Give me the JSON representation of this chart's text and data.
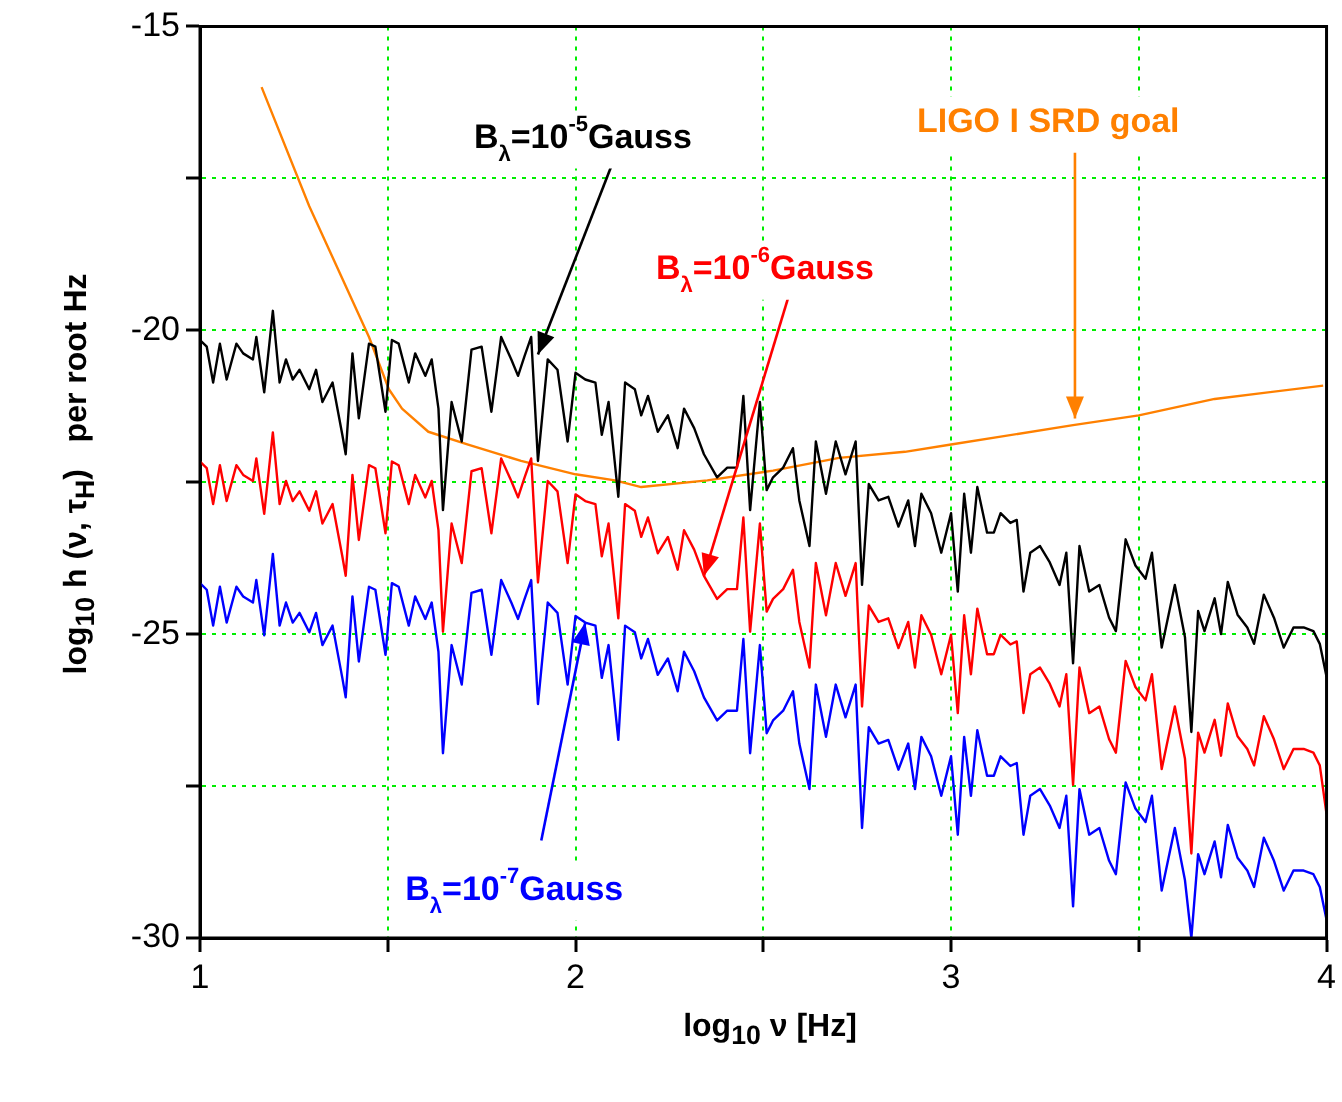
{
  "chart_data": {
    "type": "line",
    "xlabel": "log$_{10}$ ν [Hz]",
    "ylabel": "log$_{10}$ h (ν, τ$_{H}$)   per root Hz",
    "xlim": [
      1,
      4
    ],
    "xticks": [
      1,
      {
        "value": 1.5,
        "label": null
      },
      2,
      {
        "value": 2.5,
        "label": null
      },
      3,
      {
        "value": 3.5,
        "label": null
      },
      4
    ],
    "ylim": [
      -30,
      -15
    ],
    "yticks": [
      -30,
      {
        "value": -27.5,
        "label": null
      },
      -25,
      {
        "value": -22.5,
        "label": null
      },
      -20,
      {
        "value": -17.5,
        "label": null
      },
      -15
    ],
    "grid": true,
    "legend": false,
    "marker": "none",
    "line_style": "solid",
    "x": [
      1.0,
      1.018,
      1.035,
      1.053,
      1.071,
      1.097,
      1.115,
      1.141,
      1.15,
      1.171,
      1.194,
      1.212,
      1.229,
      1.247,
      1.265,
      1.291,
      1.309,
      1.326,
      1.353,
      1.379,
      1.388,
      1.406,
      1.423,
      1.45,
      1.467,
      1.494,
      1.511,
      1.529,
      1.556,
      1.573,
      1.6,
      1.617,
      1.635,
      1.647,
      1.67,
      1.697,
      1.723,
      1.75,
      1.776,
      1.802,
      1.829,
      1.847,
      1.864,
      1.882,
      1.9,
      1.926,
      1.952,
      1.979,
      2.0,
      2.026,
      2.053,
      2.07,
      2.088,
      2.114,
      2.132,
      2.158,
      2.175,
      2.193,
      2.219,
      2.246,
      2.272,
      2.289,
      2.316,
      2.342,
      2.377,
      2.404,
      2.43,
      2.447,
      2.465,
      2.491,
      2.509,
      2.526,
      2.553,
      2.579,
      2.596,
      2.623,
      2.64,
      2.667,
      2.693,
      2.719,
      2.746,
      2.763,
      2.781,
      2.807,
      2.833,
      2.86,
      2.886,
      2.904,
      2.921,
      2.947,
      2.974,
      3.0,
      3.018,
      3.035,
      3.053,
      3.07,
      3.096,
      3.114,
      3.132,
      3.158,
      3.175,
      3.193,
      3.211,
      3.237,
      3.263,
      3.289,
      3.307,
      3.325,
      3.342,
      3.368,
      3.395,
      3.421,
      3.439,
      3.465,
      3.491,
      3.518,
      3.535,
      3.561,
      3.596,
      3.623,
      3.64,
      3.658,
      3.675,
      3.702,
      3.719,
      3.737,
      3.763,
      3.789,
      3.807,
      3.833,
      3.86,
      3.886,
      3.912,
      3.939,
      3.965,
      3.982,
      4.0
    ],
    "series": [
      {
        "color": "#000000",
        "values": [
          -20.16,
          -20.27,
          -20.86,
          -20.22,
          -20.81,
          -20.22,
          -20.38,
          -20.48,
          -20.11,
          -21.02,
          -19.68,
          -20.86,
          -20.48,
          -20.81,
          -20.65,
          -20.97,
          -20.65,
          -21.18,
          -20.86,
          -21.72,
          -22.04,
          -20.38,
          -21.45,
          -20.22,
          -20.27,
          -21.34,
          -20.16,
          -20.22,
          -20.86,
          -20.38,
          -20.75,
          -20.48,
          -21.29,
          -22.96,
          -21.18,
          -21.83,
          -20.32,
          -20.27,
          -21.34,
          -20.11,
          -20.48,
          -20.75,
          -20.43,
          -20.11,
          -22.15,
          -20.48,
          -20.65,
          -21.83,
          -20.7,
          -20.81,
          -20.86,
          -21.72,
          -21.18,
          -22.74,
          -20.86,
          -20.97,
          -21.4,
          -21.08,
          -21.67,
          -21.4,
          -21.94,
          -21.29,
          -21.61,
          -22.04,
          -22.42,
          -22.26,
          -22.26,
          -21.08,
          -22.96,
          -21.18,
          -22.63,
          -22.42,
          -22.26,
          -21.94,
          -22.8,
          -23.55,
          -21.83,
          -22.69,
          -21.83,
          -22.37,
          -21.83,
          -24.19,
          -22.53,
          -22.8,
          -22.74,
          -23.23,
          -22.8,
          -23.55,
          -22.69,
          -23.01,
          -23.66,
          -23.01,
          -24.3,
          -22.69,
          -23.66,
          -22.58,
          -23.33,
          -23.33,
          -23.01,
          -23.17,
          -23.12,
          -24.3,
          -23.66,
          -23.55,
          -23.82,
          -24.19,
          -23.66,
          -25.48,
          -23.55,
          -24.3,
          -24.19,
          -24.73,
          -24.95,
          -23.44,
          -23.87,
          -24.09,
          -23.66,
          -25.22,
          -24.19,
          -25.05,
          -26.61,
          -24.62,
          -24.95,
          -24.41,
          -25.0,
          -24.14,
          -24.68,
          -24.89,
          -25.16,
          -24.35,
          -24.73,
          -25.22,
          -24.89,
          -24.89,
          -24.95,
          -25.16,
          -25.7
        ]
      },
      {
        "color": "#ff0000",
        "values": [
          -22.16,
          -22.27,
          -22.86,
          -22.22,
          -22.81,
          -22.22,
          -22.38,
          -22.48,
          -22.11,
          -23.02,
          -21.68,
          -22.86,
          -22.48,
          -22.81,
          -22.65,
          -22.97,
          -22.65,
          -23.18,
          -22.86,
          -23.72,
          -24.04,
          -22.38,
          -23.45,
          -22.22,
          -22.27,
          -23.34,
          -22.16,
          -22.22,
          -22.86,
          -22.38,
          -22.75,
          -22.48,
          -23.29,
          -24.96,
          -23.18,
          -23.83,
          -22.32,
          -22.27,
          -23.34,
          -22.11,
          -22.48,
          -22.75,
          -22.43,
          -22.11,
          -24.15,
          -22.48,
          -22.65,
          -23.83,
          -22.7,
          -22.81,
          -22.86,
          -23.72,
          -23.18,
          -24.74,
          -22.86,
          -22.97,
          -23.4,
          -23.08,
          -23.67,
          -23.4,
          -23.94,
          -23.29,
          -23.61,
          -24.04,
          -24.42,
          -24.26,
          -24.26,
          -23.08,
          -24.96,
          -23.18,
          -24.63,
          -24.42,
          -24.26,
          -23.94,
          -24.8,
          -25.55,
          -23.83,
          -24.69,
          -23.83,
          -24.37,
          -23.83,
          -26.19,
          -24.53,
          -24.8,
          -24.74,
          -25.23,
          -24.8,
          -25.55,
          -24.69,
          -25.01,
          -25.66,
          -25.01,
          -26.3,
          -24.69,
          -25.66,
          -24.58,
          -25.33,
          -25.33,
          -25.01,
          -25.17,
          -25.12,
          -26.3,
          -25.66,
          -25.55,
          -25.82,
          -26.19,
          -25.66,
          -27.48,
          -25.55,
          -26.3,
          -26.19,
          -26.73,
          -26.95,
          -25.44,
          -25.87,
          -26.09,
          -25.66,
          -27.22,
          -26.19,
          -27.05,
          -28.61,
          -26.62,
          -26.95,
          -26.41,
          -27.0,
          -26.14,
          -26.68,
          -26.89,
          -27.16,
          -26.35,
          -26.73,
          -27.22,
          -26.89,
          -26.89,
          -26.95,
          -27.16,
          -27.96
        ]
      },
      {
        "color": "#0000ff",
        "values": [
          -24.16,
          -24.27,
          -24.86,
          -24.22,
          -24.81,
          -24.22,
          -24.38,
          -24.48,
          -24.11,
          -25.02,
          -23.68,
          -24.86,
          -24.48,
          -24.81,
          -24.65,
          -24.97,
          -24.65,
          -25.18,
          -24.86,
          -25.72,
          -26.04,
          -24.38,
          -25.45,
          -24.22,
          -24.27,
          -25.34,
          -24.16,
          -24.22,
          -24.86,
          -24.38,
          -24.75,
          -24.48,
          -25.29,
          -26.96,
          -25.18,
          -25.83,
          -24.32,
          -24.27,
          -25.34,
          -24.11,
          -24.48,
          -24.75,
          -24.43,
          -24.11,
          -26.15,
          -24.48,
          -24.65,
          -25.83,
          -24.7,
          -24.81,
          -24.86,
          -25.72,
          -25.18,
          -26.74,
          -24.86,
          -24.97,
          -25.4,
          -25.08,
          -25.67,
          -25.4,
          -25.94,
          -25.29,
          -25.61,
          -26.04,
          -26.42,
          -26.26,
          -26.26,
          -25.08,
          -26.96,
          -25.18,
          -26.63,
          -26.42,
          -26.26,
          -25.94,
          -26.8,
          -27.55,
          -25.83,
          -26.69,
          -25.83,
          -26.37,
          -25.83,
          -28.19,
          -26.53,
          -26.8,
          -26.74,
          -27.23,
          -26.8,
          -27.55,
          -26.69,
          -27.01,
          -27.66,
          -27.01,
          -28.3,
          -26.69,
          -27.66,
          -26.58,
          -27.33,
          -27.33,
          -27.01,
          -27.17,
          -27.12,
          -28.3,
          -27.66,
          -27.55,
          -27.82,
          -28.19,
          -27.66,
          -29.48,
          -27.55,
          -28.3,
          -28.19,
          -28.73,
          -28.95,
          -27.44,
          -27.87,
          -28.09,
          -27.66,
          -29.22,
          -28.19,
          -29.05,
          -30,
          -28.62,
          -28.95,
          -28.41,
          -29.0,
          -28.14,
          -28.68,
          -28.89,
          -29.16,
          -28.35,
          -28.73,
          -29.22,
          -28.89,
          -28.89,
          -28.95,
          -29.16,
          -29.7
        ]
      },
      {
        "color": "#ff8000",
        "x": [
          1.164,
          1.291,
          1.45,
          1.503,
          1.538,
          1.608,
          1.714,
          1.855,
          2.0,
          2.105,
          2.175,
          2.351,
          2.526,
          2.702,
          2.877,
          3.0,
          3.325,
          3.5,
          3.702,
          3.991
        ],
        "values": [
          -16.0,
          -17.96,
          -20.11,
          -20.97,
          -21.29,
          -21.67,
          -21.88,
          -22.15,
          -22.37,
          -22.47,
          -22.58,
          -22.47,
          -22.31,
          -22.1,
          -22.0,
          -21.88,
          -21.56,
          -21.4,
          -21.13,
          -20.91
        ]
      }
    ],
    "annotations": [
      {
        "text": "B$_{λ}$=10$^{-5}$Gauss",
        "x": 1.9,
        "y": -20.4
      },
      {
        "text": "B$_{λ}$=10$^{-6}$Gauss",
        "x": 2.342,
        "y": -24.04
      },
      {
        "text": "B$_{λ}$=10$^{-7}$Gauss",
        "x": 2.026,
        "y": -24.81
      },
      {
        "text": "LIGO I SRD goal",
        "x": 3.33,
        "y": -21.45
      }
    ]
  }
}
